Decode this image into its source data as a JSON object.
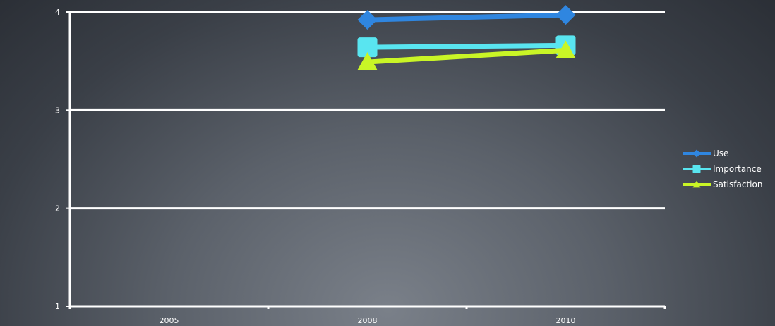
{
  "chart_data": {
    "type": "line",
    "title": "",
    "xlabel": "",
    "ylabel": "",
    "categories": [
      "2005",
      "2008",
      "2010"
    ],
    "ylim": [
      1,
      4
    ],
    "yticks": [
      "1",
      "2",
      "3",
      "4"
    ],
    "grid": true,
    "legend_position": "right",
    "series": [
      {
        "name": "Use",
        "color": "#2f86e0",
        "marker": "diamond",
        "values": [
          null,
          3.92,
          3.97
        ]
      },
      {
        "name": "Importance",
        "color": "#59e5f0",
        "marker": "square",
        "values": [
          null,
          3.64,
          3.66
        ]
      },
      {
        "name": "Satisfaction",
        "color": "#c9f526",
        "marker": "triangle",
        "values": [
          null,
          3.49,
          3.61
        ]
      }
    ]
  }
}
